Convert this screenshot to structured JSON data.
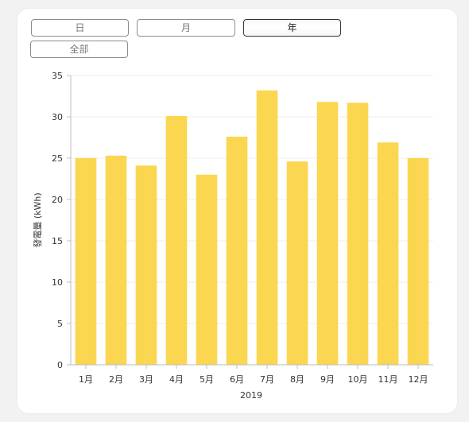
{
  "tabs": {
    "day": "日",
    "month": "月",
    "year": "年",
    "all": "全部",
    "active": "year"
  },
  "colors": {
    "bar": "#fbd650",
    "grid": "#ececec",
    "axis": "#bdbdbd"
  },
  "chart_data": {
    "type": "bar",
    "categories": [
      "1月",
      "2月",
      "3月",
      "4月",
      "5月",
      "6月",
      "7月",
      "8月",
      "9月",
      "10月",
      "11月",
      "12月"
    ],
    "values": [
      25.0,
      25.3,
      24.1,
      30.1,
      23.0,
      27.6,
      33.2,
      24.6,
      31.8,
      31.7,
      26.9,
      25.0
    ],
    "xlabel": "2019",
    "ylabel": "發電量 (kWh)",
    "ylim": [
      0,
      35
    ],
    "yticks": [
      0,
      5,
      10,
      15,
      20,
      25,
      30,
      35
    ],
    "grid": true,
    "legend": "none"
  }
}
